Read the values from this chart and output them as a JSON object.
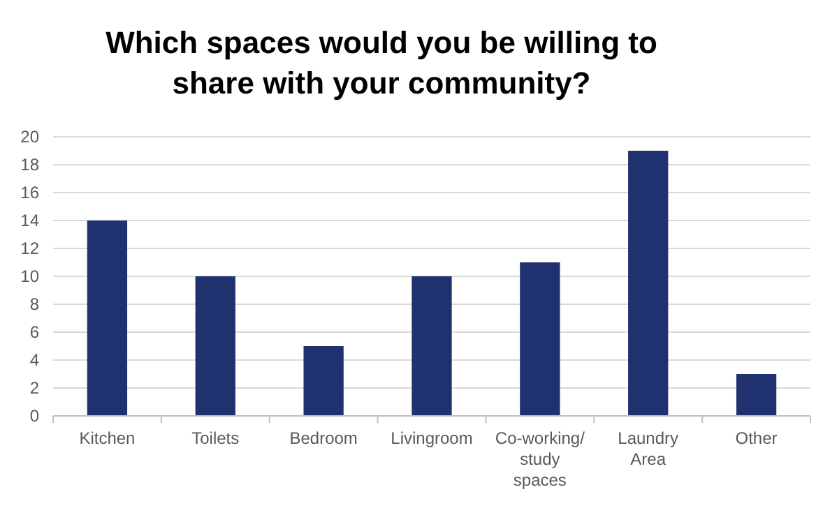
{
  "chart_data": {
    "type": "bar",
    "title": "Which spaces would you be willing to share with your community?",
    "categories": [
      "Kitchen",
      "Toilets",
      "Bedroom",
      "Livingroom",
      "Co-working/ study spaces",
      "Laundry Area",
      "Other"
    ],
    "values": [
      14,
      10,
      5,
      10,
      11,
      19,
      3
    ],
    "color": "#203170",
    "ylim": [
      0,
      20
    ],
    "yticks": [
      0,
      2,
      4,
      6,
      8,
      10,
      12,
      14,
      16,
      18,
      20
    ],
    "grid": "y"
  }
}
